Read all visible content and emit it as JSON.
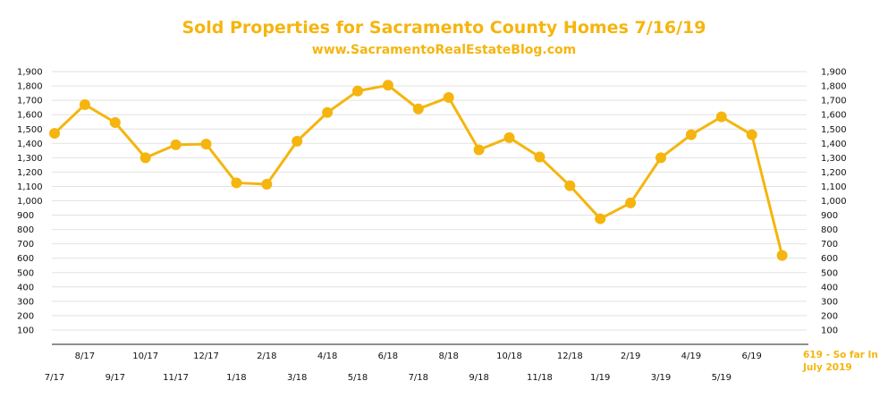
{
  "chart_data": {
    "type": "line",
    "title": "Sold Properties for Sacramento County Homes 7/16/19",
    "subtitle": "www.SacramentoRealEstateBlog.com",
    "categories": [
      "7/17",
      "8/17",
      "9/17",
      "10/17",
      "11/17",
      "12/17",
      "1/18",
      "2/18",
      "3/18",
      "4/18",
      "5/18",
      "6/18",
      "7/18",
      "8/18",
      "9/18",
      "10/18",
      "11/18",
      "12/18",
      "1/19",
      "2/19",
      "3/19",
      "4/19",
      "5/19",
      "6/19",
      "7/19"
    ],
    "values": [
      1470,
      1670,
      1545,
      1300,
      1390,
      1395,
      1125,
      1115,
      1415,
      1615,
      1765,
      1805,
      1640,
      1720,
      1355,
      1440,
      1305,
      1105,
      875,
      985,
      1300,
      1460,
      1585,
      1460,
      619
    ],
    "y_ticks": [
      "100",
      "200",
      "300",
      "400",
      "500",
      "600",
      "700",
      "800",
      "900",
      "1,000",
      "1,100",
      "1,200",
      "1,300",
      "1,400",
      "1,500",
      "1,600",
      "1,700",
      "1,800",
      "1,900"
    ],
    "ylim": [
      0,
      1900
    ],
    "grid": true,
    "color": "#f5b50e",
    "annotation_line1": "619 - So far In",
    "annotation_line2": "July 2019"
  }
}
